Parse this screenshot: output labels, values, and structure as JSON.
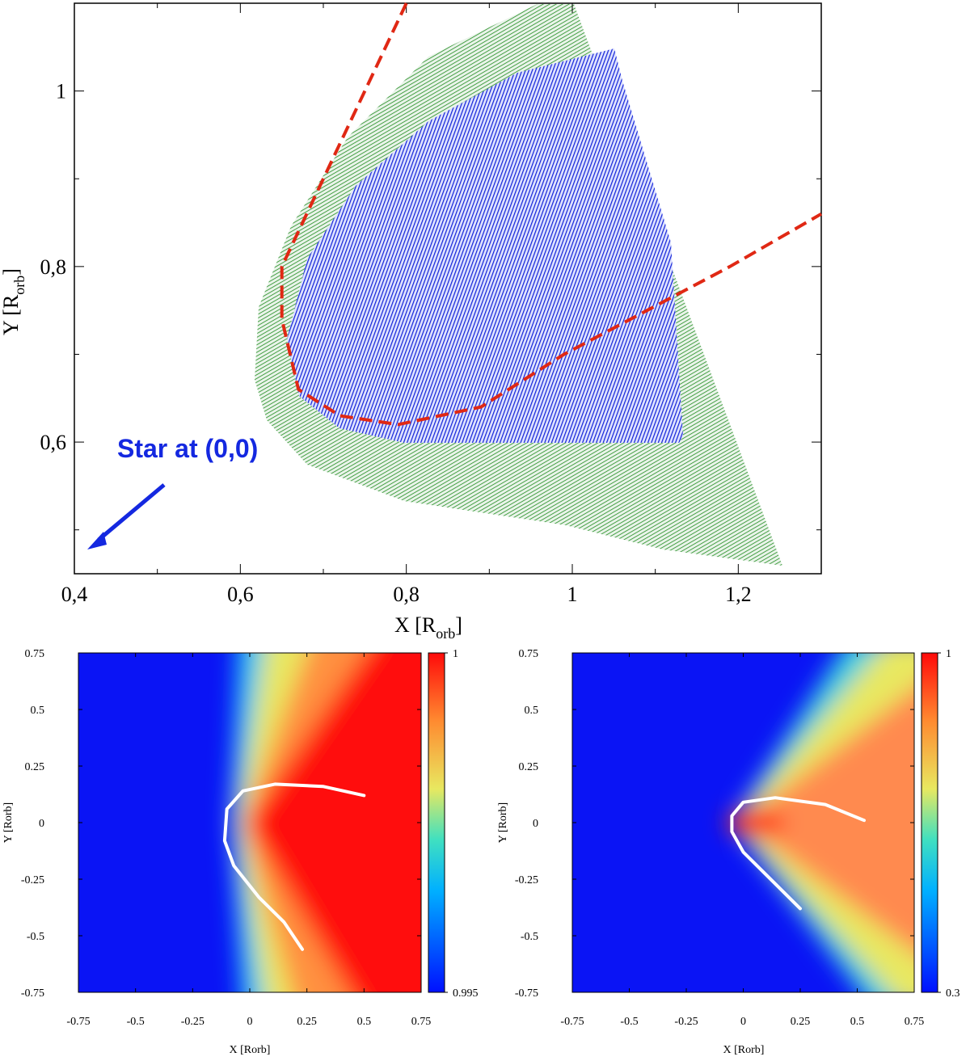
{
  "chart_data": [
    {
      "type": "line",
      "xlabel": {
        "text": "X [R",
        "sub": "orb",
        "end": "]"
      },
      "ylabel": {
        "text": "Y [R",
        "sub": "orb",
        "end": "]"
      },
      "annotation": "Star at (0,0)",
      "xlim": [
        0.4,
        1.3
      ],
      "ylim": [
        0.45,
        1.1
      ],
      "xticks": [
        {
          "value": 0.4,
          "label": "0,4"
        },
        {
          "value": 0.6,
          "label": "0,6"
        },
        {
          "value": 0.8,
          "label": "0,8"
        },
        {
          "value": 1,
          "label": "1"
        },
        {
          "value": 1.2,
          "label": "1,2"
        }
      ],
      "yticks": [
        {
          "value": 0.6,
          "label": "0,6"
        },
        {
          "value": 0.8,
          "label": "0,8"
        },
        {
          "value": 1,
          "label": "1"
        }
      ],
      "xminor_ticks": [
        0.5,
        0.7,
        0.9,
        1.1
      ],
      "yminor_ticks": [
        0.5,
        0.7,
        0.9
      ],
      "series": [
        {
          "color": "#e02814",
          "x": [
            0.8,
            0.69,
            0.65,
            0.65,
            0.67,
            0.72,
            0.79,
            0.89,
            0.99,
            1.09,
            1.19,
            1.3
          ],
          "values": [
            1.1,
            0.88,
            0.8,
            0.74,
            0.66,
            0.63,
            0.62,
            0.64,
            0.7,
            0.75,
            0.8,
            0.86
          ]
        }
      ]
    },
    {
      "type": "heatmap",
      "xlabel": "X [Rorb]",
      "ylabel": "Y [Rorb]",
      "xlim": [
        -0.75,
        0.75
      ],
      "ylim": [
        -0.75,
        0.75
      ],
      "xticks": [
        -0.75,
        -0.5,
        -0.25,
        0,
        0.25,
        0.5,
        0.75
      ],
      "yticks": [
        -0.75,
        -0.5,
        -0.25,
        0,
        0.25,
        0.5,
        0.75
      ],
      "colorbar": {
        "lim": [
          0.995,
          1
        ],
        "ticks": [
          0.995,
          1
        ]
      },
      "series": [
        {
          "color": "#ffffff",
          "x": [
            0.5,
            0.32,
            0.11,
            -0.03,
            -0.1,
            -0.11,
            -0.07,
            0.04,
            0.15,
            0.23
          ],
          "values": [
            0.12,
            0.16,
            0.17,
            0.14,
            0.06,
            -0.08,
            -0.19,
            -0.33,
            -0.44,
            -0.56
          ]
        }
      ]
    },
    {
      "type": "heatmap",
      "xlabel": "X [Rorb]",
      "ylabel": "Y [Rorb]",
      "xlim": [
        -0.75,
        0.75
      ],
      "ylim": [
        -0.75,
        0.75
      ],
      "xticks": [
        -0.75,
        -0.5,
        -0.25,
        0,
        0.25,
        0.5,
        0.75
      ],
      "yticks": [
        -0.75,
        -0.5,
        -0.25,
        0,
        0.25,
        0.5,
        0.75
      ],
      "colorbar": {
        "lim": [
          0.3,
          1
        ],
        "ticks": [
          0.3,
          1
        ]
      },
      "series": [
        {
          "color": "#ffffff",
          "x": [
            0.53,
            0.36,
            0.14,
            0.0,
            -0.05,
            -0.05,
            0.0,
            0.11,
            0.25
          ],
          "values": [
            0.01,
            0.08,
            0.11,
            0.09,
            0.03,
            -0.04,
            -0.13,
            -0.24,
            -0.38
          ]
        }
      ]
    }
  ]
}
